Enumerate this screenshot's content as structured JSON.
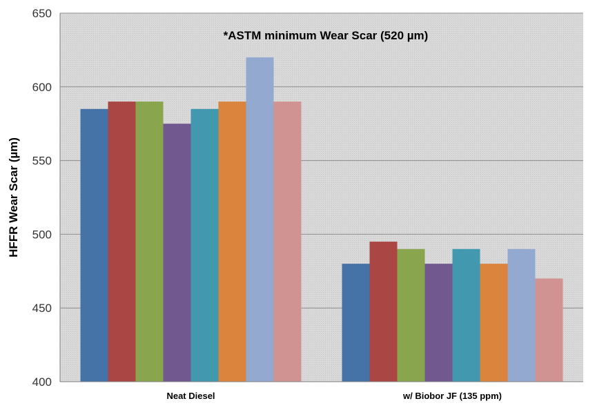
{
  "chart_data": {
    "type": "bar",
    "categories": [
      "Neat Diesel",
      "w/ Biobor JF (135 ppm)"
    ],
    "series": [
      {
        "values": [
          585,
          480
        ],
        "color": "#4572a7"
      },
      {
        "values": [
          590,
          495
        ],
        "color": "#aa4643"
      },
      {
        "values": [
          590,
          490
        ],
        "color": "#89a54e"
      },
      {
        "values": [
          575,
          480
        ],
        "color": "#71588f"
      },
      {
        "values": [
          585,
          490
        ],
        "color": "#4198af"
      },
      {
        "values": [
          590,
          480
        ],
        "color": "#db843d"
      },
      {
        "values": [
          620,
          490
        ],
        "color": "#93a9cf"
      },
      {
        "values": [
          590,
          470
        ],
        "color": "#d19392"
      }
    ],
    "title": "",
    "xlabel": "",
    "ylabel": "HFFR Wear Scar (µm)",
    "ylim": [
      400,
      650
    ],
    "yticks": [
      400,
      450,
      500,
      550,
      600,
      650
    ],
    "ytick_labels": [
      "400",
      "450",
      "500",
      "550",
      "600",
      "650"
    ],
    "annotation": "*ASTM minimum Wear Scar (520 µm)",
    "grid": true,
    "legend": "none"
  }
}
